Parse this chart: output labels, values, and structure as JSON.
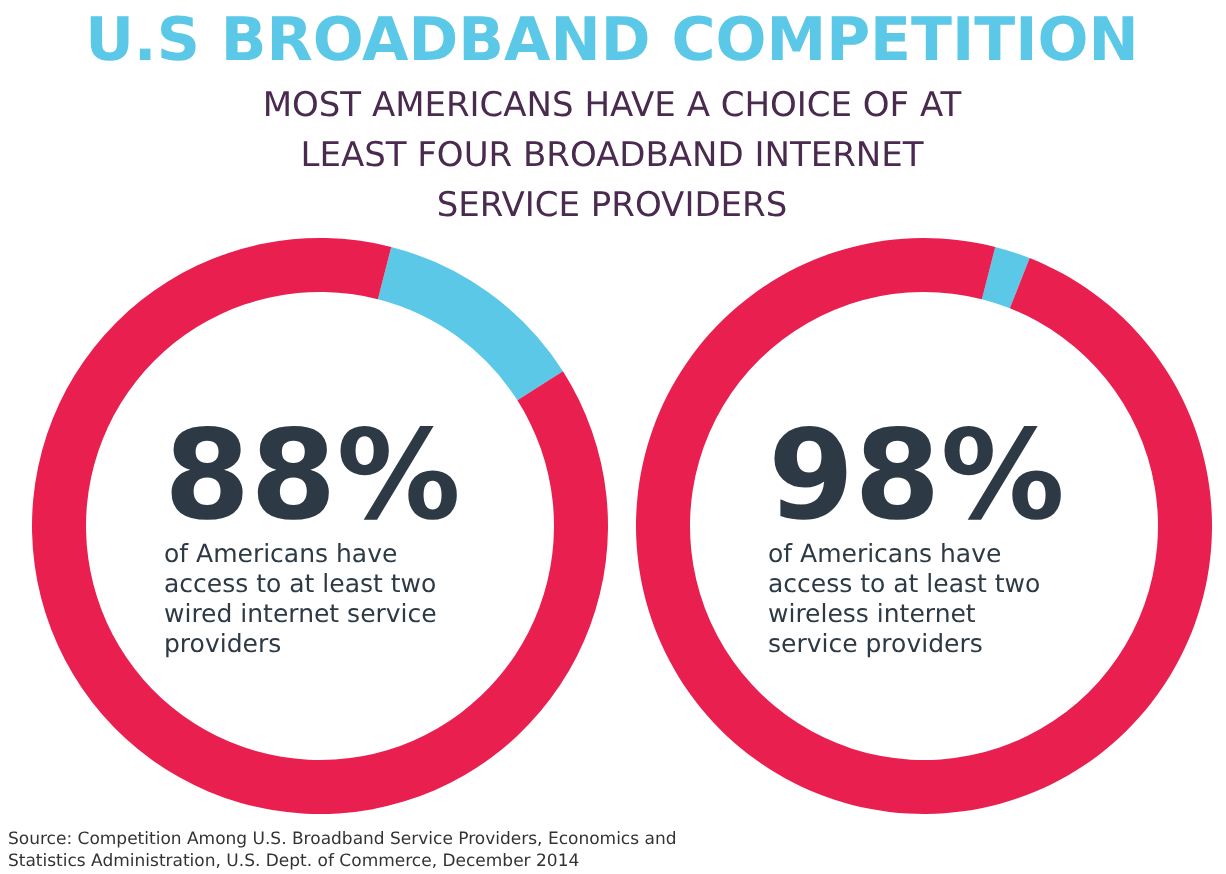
{
  "chart_data": [
    {
      "type": "donut",
      "title": "U.S BROADBAND COMPETITION",
      "subtitle": "MOST AMERICANS HAVE A CHOICE OF AT LEAST FOUR BROADBAND INTERNET SERVICE PROVIDERS",
      "categories": [
        null,
        null
      ],
      "values": [
        12,
        88
      ],
      "colors": [
        "#5bc8e8",
        "#e81f4f"
      ],
      "value_labels": [
        null,
        "88%"
      ],
      "annotations": [
        "of Americans have access to at least two wired internet service providers"
      ]
    },
    {
      "type": "donut",
      "categories": [
        null,
        null
      ],
      "values": [
        2,
        98
      ],
      "colors": [
        "#5bc8e8",
        "#e81f4f"
      ],
      "value_labels": [
        null,
        "98%"
      ],
      "annotations": [
        "of Americans have access to at least two wireless internet service providers",
        "Source: Competition Among U.S. Broadband Service Providers, Economics and Statistics Administration, U.S. Dept. of Commerce, December 2014"
      ]
    }
  ]
}
